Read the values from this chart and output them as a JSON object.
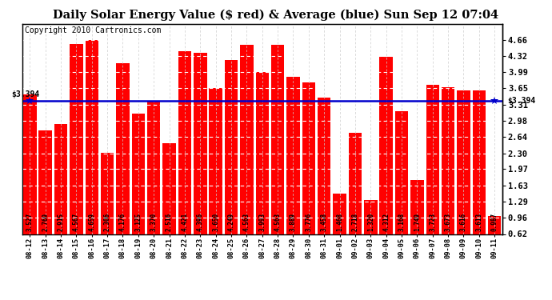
{
  "title": "Daily Solar Energy Value ($ red) & Average (blue) Sun Sep 12 07:04",
  "copyright": "Copyright 2010 Cartronics.com",
  "average_value": 3.394,
  "average_label_left": "$3.394",
  "average_label_right": "$3.394",
  "categories": [
    "08-12",
    "08-13",
    "08-14",
    "08-15",
    "08-16",
    "08-17",
    "08-18",
    "08-19",
    "08-20",
    "08-21",
    "08-22",
    "08-23",
    "08-24",
    "08-25",
    "08-26",
    "08-27",
    "08-28",
    "08-29",
    "08-30",
    "08-31",
    "09-01",
    "09-02",
    "09-03",
    "09-04",
    "09-05",
    "09-06",
    "09-07",
    "09-08",
    "09-09",
    "09-10",
    "09-11"
  ],
  "values": [
    3.527,
    2.769,
    2.915,
    4.567,
    4.659,
    2.306,
    4.176,
    3.125,
    3.37,
    2.516,
    4.421,
    4.396,
    3.65,
    4.249,
    4.563,
    3.993,
    4.563,
    3.889,
    3.776,
    3.458,
    1.468,
    2.718,
    1.32,
    4.312,
    3.168,
    1.749,
    3.723,
    3.673,
    3.616,
    3.613,
    0.987
  ],
  "bar_color": "#ff0000",
  "avg_line_color": "#0000cc",
  "background_color": "#ffffff",
  "ylim_min": 0.62,
  "ylim_max": 4.99,
  "yticks": [
    0.62,
    0.96,
    1.29,
    1.63,
    1.97,
    2.3,
    2.64,
    2.98,
    3.31,
    3.65,
    3.99,
    4.32,
    4.66
  ],
  "title_fontsize": 10.5,
  "copyright_fontsize": 7,
  "bar_label_fontsize": 5.5,
  "tick_fontsize": 7.5
}
